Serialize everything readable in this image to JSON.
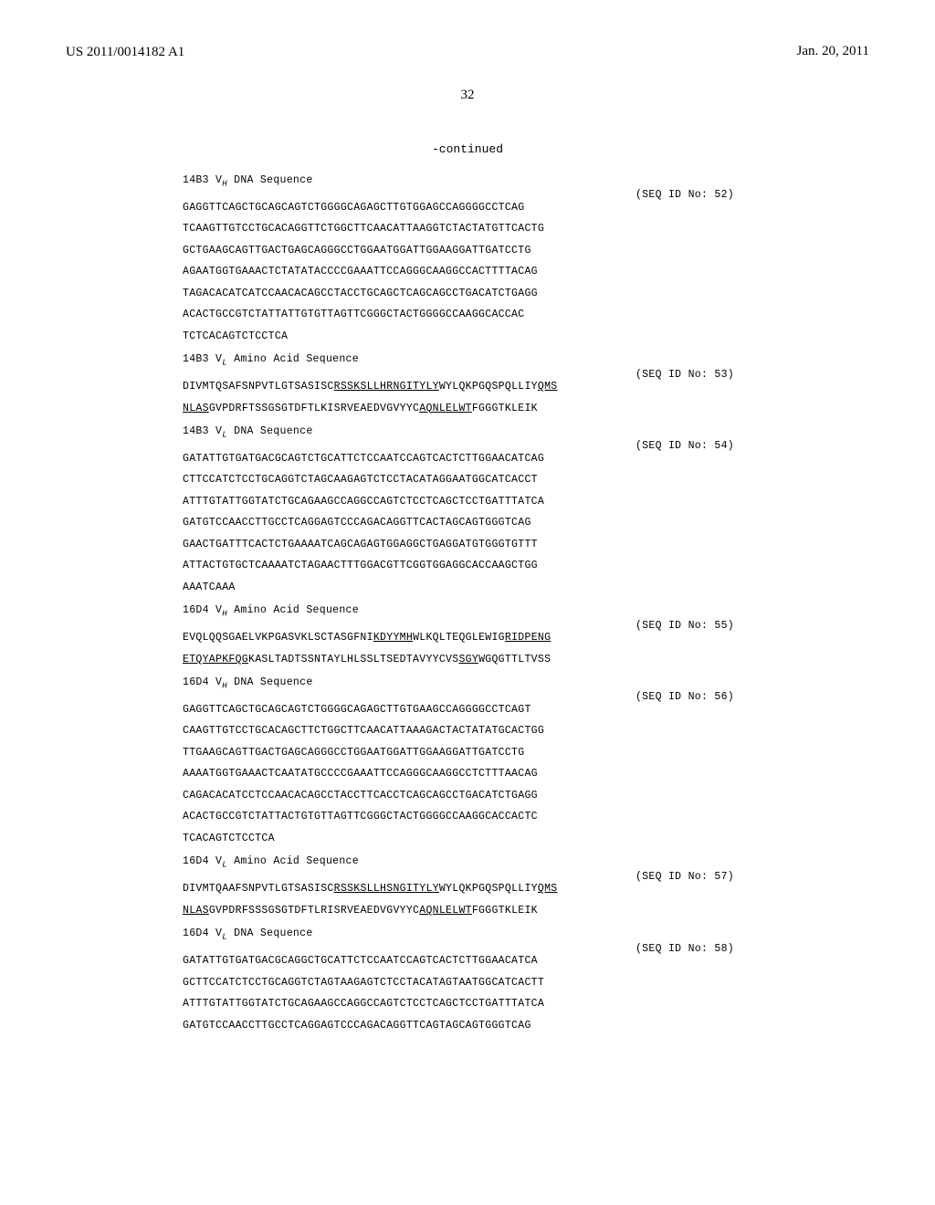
{
  "header": {
    "pub_number": "US 2011/0014182 A1",
    "pub_date": "Jan. 20, 2011",
    "page_number": "32",
    "continued": "-continued"
  },
  "blocks": [
    {
      "title_prefix": "14B3 V",
      "title_sub": "H",
      "title_suffix": " DNA Sequence",
      "seq_id": "(SEQ ID No: 52)",
      "lines": [
        {
          "plain": "GAGGTTCAGCTGCAGCAGTCTGGGGCAGAGCTTGTGGAGCCAGGGGCCTCAG"
        },
        {
          "plain": "TCAAGTTGTCCTGCACAGGTTCTGGCTTCAACATTAAGGTCTACTATGTTCACTG"
        },
        {
          "plain": "GCTGAAGCAGTTGACTGAGCAGGGCCTGGAATGGATTGGAAGGATTGATCCTG"
        },
        {
          "plain": "AGAATGGTGAAACTCTATATACCCCGAAATTCCAGGGCAAGGCCACTTTTACAG"
        },
        {
          "plain": "TAGACACATCATCCAACACAGCCTACCTGCAGCTCAGCAGCCTGACATCTGAGG"
        },
        {
          "plain": "ACACTGCCGTCTATTATTGTGTTAGTTCGGGCTACTGGGGCCAAGGCACCAC"
        },
        {
          "plain": "TCTCACAGTCTCCTCA"
        }
      ]
    },
    {
      "title_prefix": "14B3 V",
      "title_sub": "L",
      "title_suffix": " Amino Acid Sequence",
      "seq_id": "(SEQ ID No: 53)",
      "lines": [
        {
          "segments": [
            {
              "t": "DIVMTQSAFSNPVTLGTSASISC",
              "u": false
            },
            {
              "t": "RSSKSLLHRNGITYLY",
              "u": true
            },
            {
              "t": "WYLQKPGQSPQLLIY",
              "u": false
            },
            {
              "t": "QMS",
              "u": true
            }
          ]
        },
        {
          "segments": [
            {
              "t": "NLAS",
              "u": true
            },
            {
              "t": "GVPDRFTSSGSGTDFTLKISRVEAEDVGVYYC",
              "u": false
            },
            {
              "t": "AQNLELWT",
              "u": true
            },
            {
              "t": "FGGGTKLEIK",
              "u": false
            }
          ]
        }
      ]
    },
    {
      "title_prefix": "14B3 V",
      "title_sub": "L",
      "title_suffix": " DNA Sequence",
      "seq_id": "(SEQ ID No: 54)",
      "lines": [
        {
          "plain": "GATATTGTGATGACGCAGTCTGCATTCTCCAATCCAGTCACTCTTGGAACATCAG"
        },
        {
          "plain": "CTTCCATCTCCTGCAGGTCTAGCAAGAGTCTCCTACATAGGAATGGCATCACCT"
        },
        {
          "plain": "ATTTGTATTGGTATCTGCAGAAGCCAGGCCAGTCTCCTCAGCTCCTGATTTATCA"
        },
        {
          "plain": "GATGTCCAACCTTGCCTCAGGAGTCCCAGACAGGTTCACTAGCAGTGGGTCAG"
        },
        {
          "plain": "GAACTGATTTCACTCTGAAAATCAGCAGAGTGGAGGCTGAGGATGTGGGTGTTT"
        },
        {
          "plain": "ATTACTGTGCTCAAAATCTAGAACTTTGGACGTTCGGTGGAGGCACCAAGCTGG"
        },
        {
          "plain": "AAATCAAA"
        }
      ]
    },
    {
      "title_prefix": "16D4 V",
      "title_sub": "H",
      "title_suffix": " Amino Acid Sequence",
      "seq_id": "(SEQ ID No: 55)",
      "lines": [
        {
          "segments": [
            {
              "t": "EVQLQQSGAELVKPGASVKLSCTASGFNI",
              "u": false
            },
            {
              "t": "KDYYMH",
              "u": true
            },
            {
              "t": "WLKQLTEQGLEWIG",
              "u": false
            },
            {
              "t": "RIDPENG",
              "u": true
            }
          ]
        },
        {
          "segments": [
            {
              "t": "ETQYAPKFQG",
              "u": true
            },
            {
              "t": "KASLTADTSSNTAYLHLSSLTSEDTAVYYCVS",
              "u": false
            },
            {
              "t": "SGY",
              "u": true
            },
            {
              "t": "WGQGTTLTVSS",
              "u": false
            }
          ]
        }
      ]
    },
    {
      "title_prefix": "16D4 V",
      "title_sub": "H",
      "title_suffix": " DNA Sequence",
      "seq_id": "(SEQ ID No: 56)",
      "lines": [
        {
          "plain": "GAGGTTCAGCTGCAGCAGTCTGGGGCAGAGCTTGTGAAGCCAGGGGCCTCAGT"
        },
        {
          "plain": "CAAGTTGTCCTGCACAGCTTCTGGCTTCAACATTAAAGACTACTATATGCACTGG"
        },
        {
          "plain": "TTGAAGCAGTTGACTGAGCAGGGCCTGGAATGGATTGGAAGGATTGATCCTG"
        },
        {
          "plain": "AAAATGGTGAAACTCAATATGCCCCGAAATTCCAGGGCAAGGCCTCTTTAACAG"
        },
        {
          "plain": "CAGACACATCCTCCAACACAGCCTACCTTCACCTCAGCAGCCTGACATCTGAGG"
        },
        {
          "plain": "ACACTGCCGTCTATTACTGTGTTAGTTCGGGCTACTGGGGCCAAGGCACCACTC"
        },
        {
          "plain": "TCACAGTCTCCTCA"
        }
      ]
    },
    {
      "title_prefix": "16D4 V",
      "title_sub": "L",
      "title_suffix": " Amino Acid Sequence",
      "seq_id": "(SEQ ID No: 57)",
      "lines": [
        {
          "segments": [
            {
              "t": "DIVMTQAAFSNPVTLGTSASISC",
              "u": false
            },
            {
              "t": "RSSKSLLHSNGITYLY",
              "u": true
            },
            {
              "t": "WYLQKPGQSPQLLIY",
              "u": false
            },
            {
              "t": "QMS",
              "u": true
            }
          ]
        },
        {
          "segments": [
            {
              "t": "NLAS",
              "u": true
            },
            {
              "t": "GVPDRFSSSGSGTDFTLRISRVEAEDVGVYYC",
              "u": false
            },
            {
              "t": "AQNLELWT",
              "u": true
            },
            {
              "t": "FGGGTKLEIK",
              "u": false
            }
          ]
        }
      ]
    },
    {
      "title_prefix": "16D4 V",
      "title_sub": "L",
      "title_suffix": " DNA Sequence",
      "seq_id": "(SEQ ID No: 58)",
      "lines": [
        {
          "plain": "GATATTGTGATGACGCAGGCTGCATTCTCCAATCCAGTCACTCTTGGAACATCA"
        },
        {
          "plain": "GCTTCCATCTCCTGCAGGTCTAGTAAGAGTCTCCTACATAGTAATGGCATCACTT"
        },
        {
          "plain": "ATTTGTATTGGTATCTGCAGAAGCCAGGCCAGTCTCCTCAGCTCCTGATTTATCA"
        },
        {
          "plain": "GATGTCCAACCTTGCCTCAGGAGTCCCAGACAGGTTCAGTAGCAGTGGGTCAG"
        }
      ]
    }
  ]
}
